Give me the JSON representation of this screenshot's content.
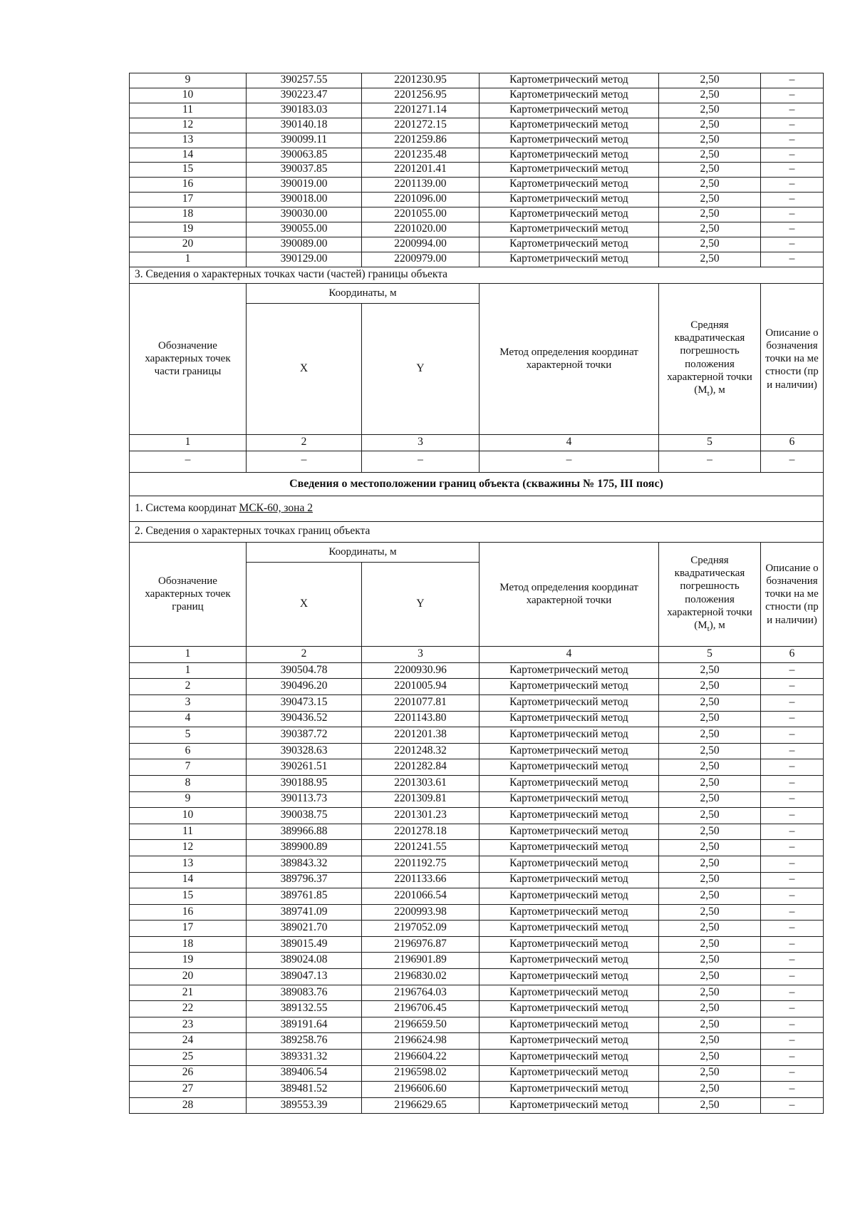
{
  "common": {
    "method": "Картометрический метод",
    "error": "2,50",
    "dash": "–"
  },
  "headers": {
    "coords": "Координаты, м",
    "x": "X",
    "y": "Y",
    "method": "Метод определения координат характерной точки",
    "error_main": "Средняя квадратическая погрешность положения характерной",
    "error_mt_prefix": "точки (M",
    "error_mt_sub": "t",
    "error_mt_suffix": "), м",
    "desc": "Описание обозначения точки на местности (при наличии)",
    "numbers": [
      "1",
      "2",
      "3",
      "4",
      "5",
      "6"
    ]
  },
  "continuation_table": {
    "rows": [
      {
        "n": "9",
        "x": "390257.55",
        "y": "2201230.95"
      },
      {
        "n": "10",
        "x": "390223.47",
        "y": "2201256.95"
      },
      {
        "n": "11",
        "x": "390183.03",
        "y": "2201271.14"
      },
      {
        "n": "12",
        "x": "390140.18",
        "y": "2201272.15"
      },
      {
        "n": "13",
        "x": "390099.11",
        "y": "2201259.86"
      },
      {
        "n": "14",
        "x": "390063.85",
        "y": "2201235.48"
      },
      {
        "n": "15",
        "x": "390037.85",
        "y": "2201201.41"
      },
      {
        "n": "16",
        "x": "390019.00",
        "y": "2201139.00"
      },
      {
        "n": "17",
        "x": "390018.00",
        "y": "2201096.00"
      },
      {
        "n": "18",
        "x": "390030.00",
        "y": "2201055.00"
      },
      {
        "n": "19",
        "x": "390055.00",
        "y": "2201020.00"
      },
      {
        "n": "20",
        "x": "390089.00",
        "y": "2200994.00"
      },
      {
        "n": "1",
        "x": "390129.00",
        "y": "2200979.00"
      }
    ]
  },
  "section3": {
    "label": "3. Сведения о характерных точках части (частей) границы объекта",
    "header_col1": "Обозначение характерных точек части границы",
    "dash_row": [
      "–",
      "–",
      "–",
      "–",
      "–",
      "–"
    ]
  },
  "object2": {
    "title": "Сведения о местоположении границ объекта (скважины № 175,  III пояс)",
    "coord_system_label": "1. Система координат ",
    "coord_system_value": "МСК-60, зона 2",
    "points_label": "2. Сведения о характерных точках границ объекта",
    "header_col1": "Обозначение характерных точек границ",
    "rows": [
      {
        "n": "1",
        "x": "390504.78",
        "y": "2200930.96"
      },
      {
        "n": "2",
        "x": "390496.20",
        "y": "2201005.94"
      },
      {
        "n": "3",
        "x": "390473.15",
        "y": "2201077.81"
      },
      {
        "n": "4",
        "x": "390436.52",
        "y": "2201143.80"
      },
      {
        "n": "5",
        "x": "390387.72",
        "y": "2201201.38"
      },
      {
        "n": "6",
        "x": "390328.63",
        "y": "2201248.32"
      },
      {
        "n": "7",
        "x": "390261.51",
        "y": "2201282.84"
      },
      {
        "n": "8",
        "x": "390188.95",
        "y": "2201303.61"
      },
      {
        "n": "9",
        "x": "390113.73",
        "y": "2201309.81"
      },
      {
        "n": "10",
        "x": "390038.75",
        "y": "2201301.23"
      },
      {
        "n": "11",
        "x": "389966.88",
        "y": "2201278.18"
      },
      {
        "n": "12",
        "x": "389900.89",
        "y": "2201241.55"
      },
      {
        "n": "13",
        "x": "389843.32",
        "y": "2201192.75"
      },
      {
        "n": "14",
        "x": "389796.37",
        "y": "2201133.66"
      },
      {
        "n": "15",
        "x": "389761.85",
        "y": "2201066.54"
      },
      {
        "n": "16",
        "x": "389741.09",
        "y": "2200993.98"
      },
      {
        "n": "17",
        "x": "389021.70",
        "y": "2197052.09"
      },
      {
        "n": "18",
        "x": "389015.49",
        "y": "2196976.87"
      },
      {
        "n": "19",
        "x": "389024.08",
        "y": "2196901.89"
      },
      {
        "n": "20",
        "x": "389047.13",
        "y": "2196830.02"
      },
      {
        "n": "21",
        "x": "389083.76",
        "y": "2196764.03"
      },
      {
        "n": "22",
        "x": "389132.55",
        "y": "2196706.45"
      },
      {
        "n": "23",
        "x": "389191.64",
        "y": "2196659.50"
      },
      {
        "n": "24",
        "x": "389258.76",
        "y": "2196624.98"
      },
      {
        "n": "25",
        "x": "389331.32",
        "y": "2196604.22"
      },
      {
        "n": "26",
        "x": "389406.54",
        "y": "2196598.02"
      },
      {
        "n": "27",
        "x": "389481.52",
        "y": "2196606.60"
      },
      {
        "n": "28",
        "x": "389553.39",
        "y": "2196629.65"
      }
    ]
  }
}
